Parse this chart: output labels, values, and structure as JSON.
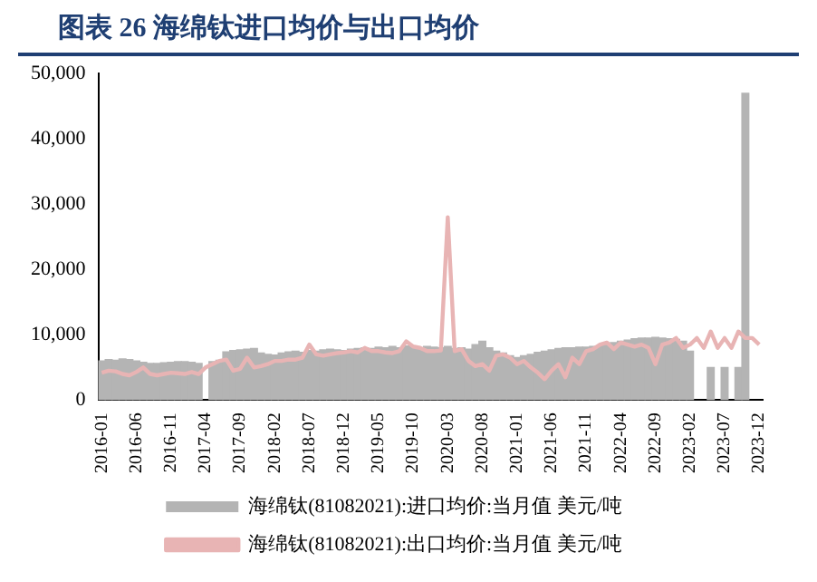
{
  "chart_data": {
    "type": "bar",
    "title": "图表 26  海绵钛进口均价与出口均价",
    "categories": [
      "2016-01",
      null,
      null,
      null,
      null,
      "2016-06",
      null,
      null,
      null,
      null,
      "2016-11",
      null,
      null,
      null,
      null,
      "2017-04",
      null,
      null,
      null,
      null,
      "2017-09",
      null,
      null,
      null,
      null,
      "2018-02",
      null,
      null,
      null,
      null,
      "2018-07",
      null,
      null,
      null,
      null,
      "2018-12",
      null,
      null,
      null,
      null,
      "2019-05",
      null,
      null,
      null,
      null,
      "2019-10",
      null,
      null,
      null,
      null,
      "2020-03",
      null,
      null,
      null,
      null,
      "2020-08",
      null,
      null,
      null,
      null,
      "2021-01",
      null,
      null,
      null,
      null,
      "2021-06",
      null,
      null,
      null,
      null,
      "2021-11",
      null,
      null,
      null,
      null,
      "2022-04",
      null,
      null,
      null,
      null,
      "2022-09",
      null,
      null,
      null,
      null,
      "2023-02",
      null,
      null,
      null,
      null,
      "2023-07",
      null,
      null,
      null,
      null,
      "2023-12"
    ],
    "series": [
      {
        "name": "海绵钛(81082021):进口均价:当月值 美元/吨",
        "color": "#b4b4b4",
        "values": [
          6000,
          6200,
          6100,
          6300,
          6200,
          6000,
          5800,
          5600,
          5600,
          5700,
          5800,
          5900,
          5900,
          5800,
          5600,
          null,
          5900,
          6100,
          7400,
          7600,
          7700,
          7800,
          7900,
          7200,
          7000,
          6900,
          7200,
          7400,
          7500,
          7300,
          7600,
          7500,
          7700,
          7800,
          7700,
          7600,
          7800,
          7900,
          8000,
          7900,
          8100,
          8000,
          8200,
          8000,
          8300,
          8100,
          8000,
          8200,
          8100,
          8000,
          8200,
          7900,
          8000,
          7800,
          8500,
          9000,
          8000,
          7500,
          7200,
          6800,
          6500,
          6800,
          7000,
          7300,
          7500,
          7700,
          7900,
          8000,
          8000,
          8100,
          8100,
          8200,
          8300,
          8500,
          8800,
          9000,
          9200,
          9400,
          9500,
          9500,
          9600,
          9500,
          9400,
          9300,
          9000,
          7500,
          null,
          null,
          5000,
          null,
          5000,
          null,
          5000,
          47000,
          null,
          null
        ]
      },
      {
        "name": "海绵钛(81082021):出口均价:当月值 美元/吨",
        "type": "line",
        "color": "#e8b4b4",
        "values": [
          4200,
          4500,
          4400,
          4000,
          3800,
          4300,
          5000,
          4000,
          3800,
          4000,
          4200,
          4100,
          4000,
          4300,
          4000,
          5000,
          5500,
          6000,
          6200,
          4500,
          4800,
          6500,
          5000,
          5200,
          5500,
          6000,
          6000,
          6200,
          6200,
          6500,
          8500,
          7000,
          6800,
          7000,
          7200,
          7300,
          7500,
          7300,
          8000,
          7500,
          7500,
          7300,
          7200,
          7500,
          9000,
          8200,
          8000,
          7500,
          7500,
          7600,
          28000,
          7500,
          7800,
          6000,
          5200,
          5500,
          4500,
          6800,
          7000,
          6500,
          5500,
          6000,
          5000,
          4200,
          3200,
          4500,
          5500,
          3500,
          6500,
          5500,
          7500,
          7800,
          8500,
          8800,
          7800,
          8800,
          8500,
          8200,
          8500,
          8000,
          5500,
          8500,
          8800,
          9500,
          8000,
          8500,
          9500,
          8000,
          10500,
          8000,
          9500,
          8000,
          10500,
          9500,
          9500,
          8500
        ]
      }
    ],
    "ylim": [
      0,
      50000
    ],
    "yticks": [
      {
        "value": 0,
        "label": "0"
      },
      {
        "value": 10000,
        "label": "10,000"
      },
      {
        "value": 20000,
        "label": "20,000"
      },
      {
        "value": 30000,
        "label": "30,000"
      },
      {
        "value": 40000,
        "label": "40,000"
      },
      {
        "value": 50000,
        "label": "50,000"
      }
    ],
    "grid": false,
    "legend": "bottom",
    "marker": "none",
    "line_style": "solid"
  }
}
